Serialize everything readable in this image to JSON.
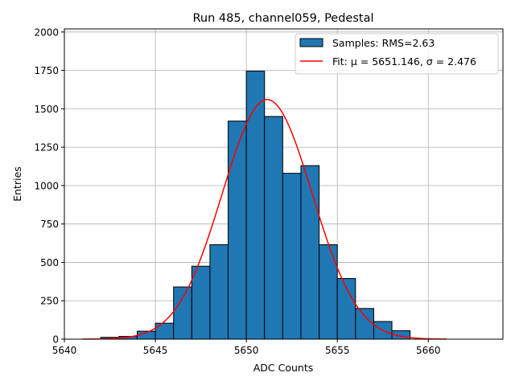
{
  "chart_data": {
    "type": "bar",
    "title": "Run 485, channel059, Pedestal",
    "xlabel": "ADC Counts",
    "ylabel": "Entries",
    "xlim": [
      5640,
      5664.1
    ],
    "ylim": [
      0,
      2020
    ],
    "xticks": [
      5640,
      5645,
      5650,
      5655,
      5660
    ],
    "yticks": [
      0,
      250,
      500,
      750,
      1000,
      1250,
      1500,
      1750,
      2000
    ],
    "grid": true,
    "legend_position": "top-right",
    "bin_width": 1,
    "bin_edges_start": [
      5642,
      5643,
      5644,
      5645,
      5646,
      5647,
      5648,
      5649,
      5650,
      5651,
      5652,
      5653,
      5654,
      5655,
      5656,
      5657,
      5658
    ],
    "series": [
      {
        "name": "Samples: RMS=2.63",
        "kind": "histogram",
        "color": "#1f77b4",
        "values": [
          12,
          18,
          52,
          104,
          340,
          475,
          615,
          1420,
          1745,
          1450,
          1080,
          1130,
          615,
          395,
          200,
          115,
          55
        ]
      },
      {
        "name": "Fit: μ = 5651.146, σ = 2.476",
        "kind": "gaussian",
        "color": "#ff0000",
        "mu": 5651.146,
        "sigma": 2.476,
        "peak": 1560,
        "x_range": [
          5641,
          5661
        ]
      }
    ]
  }
}
